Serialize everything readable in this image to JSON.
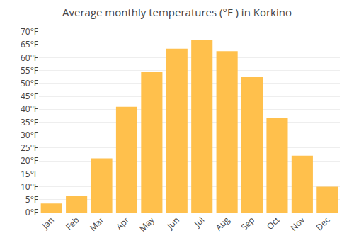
{
  "chart_data": {
    "type": "bar",
    "title": "Average monthly temperatures (°F ) in Korkino",
    "categories": [
      "Jan",
      "Feb",
      "Mar",
      "Apr",
      "May",
      "Jun",
      "Jul",
      "Aug",
      "Sep",
      "Oct",
      "Nov",
      "Dec"
    ],
    "values": [
      3.5,
      6.5,
      21,
      41,
      54.5,
      63.5,
      67,
      62.5,
      52.5,
      36.5,
      22,
      10
    ],
    "color": "#FFC04C",
    "ylim": [
      0,
      70
    ],
    "yticks": [
      {
        "value": 0,
        "label": "0°F"
      },
      {
        "value": 5,
        "label": "5°F"
      },
      {
        "value": 10,
        "label": "10°F"
      },
      {
        "value": 15,
        "label": "15°F"
      },
      {
        "value": 20,
        "label": "20°F"
      },
      {
        "value": 25,
        "label": "25°F"
      },
      {
        "value": 30,
        "label": "30°F"
      },
      {
        "value": 35,
        "label": "35°F"
      },
      {
        "value": 40,
        "label": "40°F"
      },
      {
        "value": 45,
        "label": "45°F"
      },
      {
        "value": 50,
        "label": "50°F"
      },
      {
        "value": 55,
        "label": "55°F"
      },
      {
        "value": 60,
        "label": "60°F"
      },
      {
        "value": 65,
        "label": "65°F"
      },
      {
        "value": 70,
        "label": "70°F"
      }
    ],
    "grid": true
  }
}
